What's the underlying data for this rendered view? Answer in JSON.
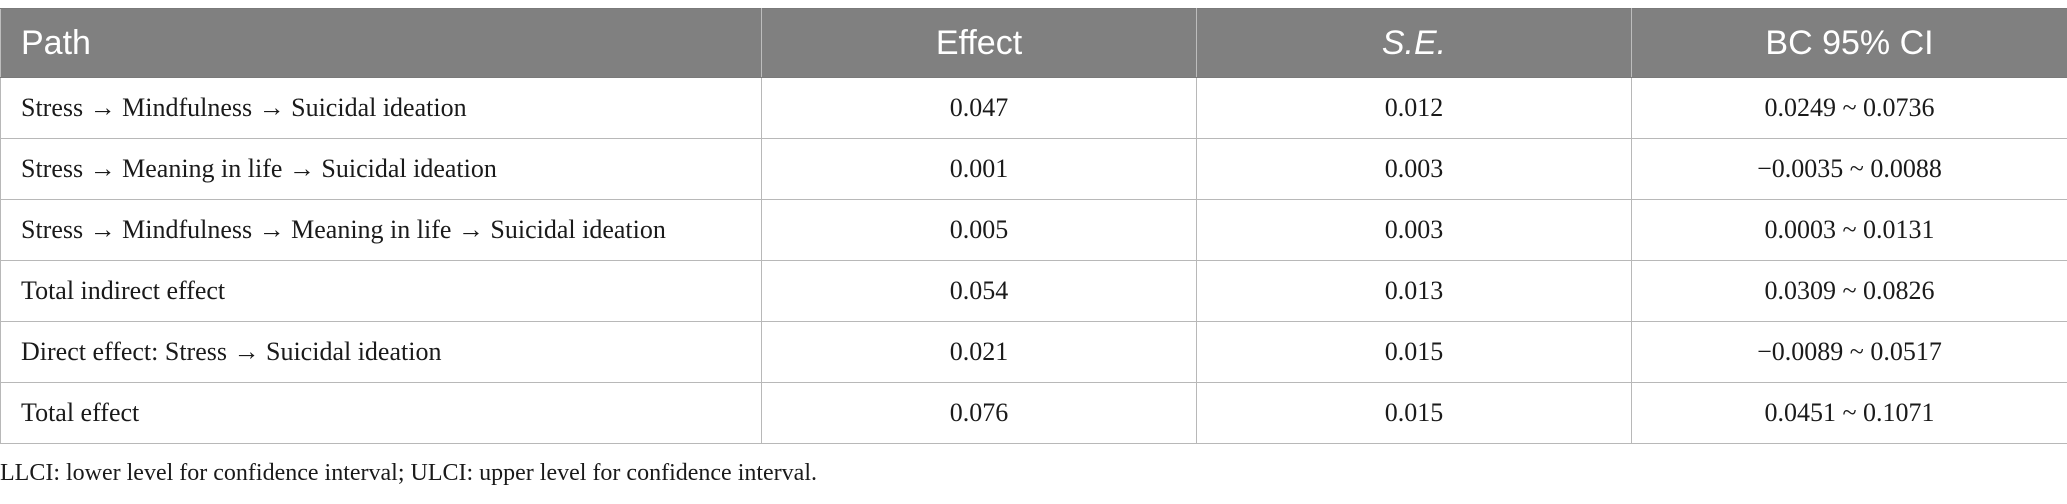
{
  "table": {
    "headers": [
      "Path",
      "Effect",
      "S.E.",
      "BC 95% CI"
    ],
    "rows": [
      [
        "Stress → Mindfulness → Suicidal ideation",
        "0.047",
        "0.012",
        "0.0249 ~ 0.0736"
      ],
      [
        "Stress → Meaning in life → Suicidal ideation",
        "0.001",
        "0.003",
        "−0.0035 ~ 0.0088"
      ],
      [
        "Stress → Mindfulness → Meaning in life → Suicidal ideation",
        "0.005",
        "0.003",
        "0.0003 ~ 0.0131"
      ],
      [
        "Total indirect effect",
        "0.054",
        "0.013",
        "0.0309 ~ 0.0826"
      ],
      [
        "Direct effect: Stress → Suicidal ideation",
        "0.021",
        "0.015",
        "−0.0089 ~ 0.0517"
      ],
      [
        "Total effect",
        "0.076",
        "0.015",
        "0.0451 ~ 0.1071"
      ]
    ]
  },
  "footnote": "LLCI: lower level for confidence interval; ULCI: upper level for confidence interval."
}
